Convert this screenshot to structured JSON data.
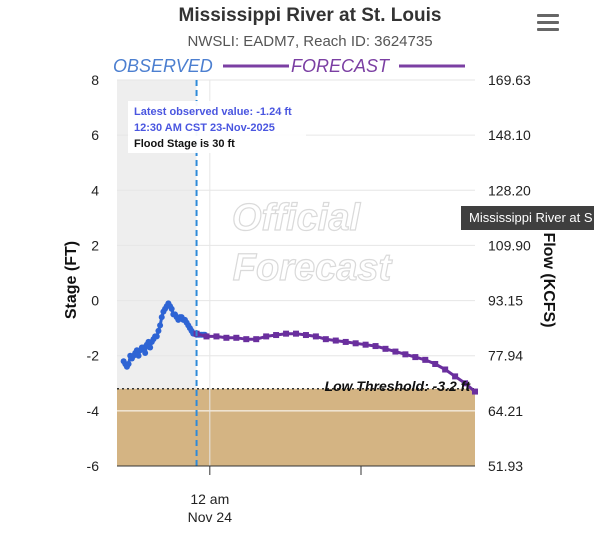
{
  "chart_data": {
    "type": "line",
    "title": "Mississippi River at St. Louis",
    "subtitle": "NWSLI: EADM7, Reach ID: 3624735",
    "ylabel": "Stage (FT)",
    "y2label": "Flow (KCFS)",
    "ylim": [
      -6,
      8
    ],
    "y_ticks": [
      "8",
      "6",
      "4",
      "2",
      "0",
      "-2",
      "-4",
      "-6"
    ],
    "y2_ticks": [
      "169.63",
      "148.10",
      "128.20",
      "109.90",
      "93.15",
      "77.94",
      "64.21",
      "51.93"
    ],
    "x_ticks": [
      {
        "label": "12 am",
        "sublabel": "Nov 24"
      }
    ],
    "bands": {
      "observed_label": "OBSERVED",
      "forecast_label": "FORECAST"
    },
    "watermark": [
      "Official",
      "Forecast"
    ],
    "low_threshold": {
      "label": "Low Threshold: -3.2 ft",
      "value": -3.2
    },
    "legend": "top",
    "series": [
      {
        "name": "Observed",
        "color": "#2e64d4",
        "x": [
          0.0,
          0.5,
          1.0,
          1.5,
          2.0,
          2.5,
          3.0,
          3.5,
          4.0,
          4.5,
          5.0,
          5.5,
          6.0,
          6.5,
          7.0,
          7.5,
          8.0,
          8.5,
          9.0,
          9.5,
          10.0,
          10.5,
          11.0,
          11.5,
          12.0,
          12.5,
          13.0,
          13.5,
          14.0,
          14.5,
          15.0,
          15.5,
          16.0,
          16.5,
          17.0,
          17.5,
          18.0,
          18.5,
          19.0,
          19.5,
          20.0,
          20.5,
          21.0,
          21.5,
          22.0,
          22.5,
          23.0,
          23.5,
          24.0,
          24.5
        ],
        "values": [
          -2.2,
          -2.3,
          -2.4,
          -2.3,
          -2.0,
          -2.1,
          -2.0,
          -1.9,
          -1.8,
          -2.0,
          -1.8,
          -1.7,
          -1.7,
          -1.9,
          -1.6,
          -1.5,
          -1.7,
          -1.5,
          -1.4,
          -1.3,
          -1.3,
          -1.1,
          -0.9,
          -0.6,
          -0.4,
          -0.3,
          -0.2,
          -0.1,
          -0.2,
          -0.3,
          -0.5,
          -0.5,
          -0.6,
          -0.7,
          -0.6,
          -0.6,
          -0.7,
          -0.7,
          -0.8,
          -0.9,
          -1.0,
          -1.1,
          -1.2,
          -1.2,
          -1.24,
          -1.24,
          -1.24,
          -1.24,
          -1.24,
          -1.24
        ]
      },
      {
        "name": "Forecast",
        "color": "#6a2f9e",
        "x": [
          22.0,
          25,
          28,
          31,
          34,
          37,
          40,
          43,
          46,
          49,
          52,
          55,
          58,
          61,
          64,
          67,
          70,
          73,
          76,
          79,
          82,
          85,
          88,
          91,
          94,
          97,
          100,
          103,
          106
        ],
        "values": [
          -1.2,
          -1.3,
          -1.3,
          -1.35,
          -1.35,
          -1.4,
          -1.4,
          -1.3,
          -1.25,
          -1.2,
          -1.2,
          -1.25,
          -1.3,
          -1.4,
          -1.45,
          -1.5,
          -1.55,
          -1.6,
          -1.65,
          -1.75,
          -1.85,
          -1.95,
          -2.05,
          -2.15,
          -2.3,
          -2.5,
          -2.75,
          -3.0,
          -3.3
        ]
      }
    ],
    "observed_x": 22.0,
    "nov24_x": 26.0,
    "x_range": [
      -2,
      106
    ]
  },
  "info_box": {
    "line1": "Latest observed value: -1.24 ft",
    "line2": "12:30 AM CST 23-Nov-2025",
    "line3": "Flood Stage is 30 ft"
  },
  "tooltip": "Mississippi River at S",
  "colors": {
    "observed_line": "#2e64d4",
    "forecast_line": "#6a2f9e",
    "observed_label": "#4c7fd0",
    "forecast_label": "#7b3fa3",
    "low_zone": "#d4b483",
    "observed_shade": "#eeeeee"
  },
  "icons": {
    "menu": "hamburger-menu-icon"
  }
}
